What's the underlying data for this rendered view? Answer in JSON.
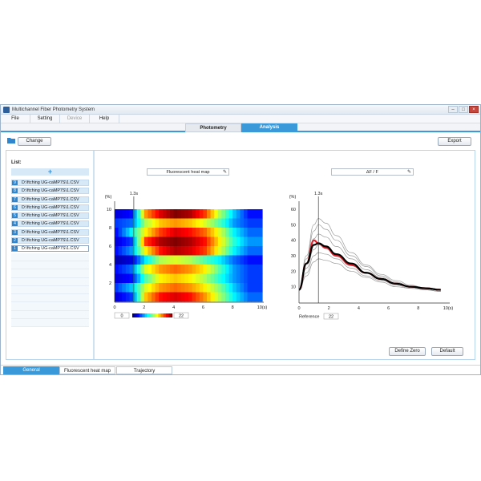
{
  "window": {
    "title": "Multichannel Fiber Photometry System"
  },
  "menu": [
    {
      "label": "File",
      "disabled": false
    },
    {
      "label": "Setting",
      "disabled": false
    },
    {
      "label": "Device",
      "disabled": true
    },
    {
      "label": "Help",
      "disabled": false
    }
  ],
  "mode_tabs": {
    "photometry": "Photometry",
    "analysis": "Analysis",
    "active": "Analysis"
  },
  "toolbar": {
    "change_label": "Change",
    "export_label": "Export"
  },
  "sidebar": {
    "list_label": "List:",
    "add_symbol": "+",
    "items": [
      {
        "num": "9",
        "file": "D:\\ftching UG-caMP7S\\1.CSV"
      },
      {
        "num": "8",
        "file": "D:\\ftching UG-caMP7S\\1.CSV"
      },
      {
        "num": "7",
        "file": "D:\\ftching UG-caMP7S\\1.CSV"
      },
      {
        "num": "6",
        "file": "D:\\ftching UG-caMP7S\\1.CSV"
      },
      {
        "num": "5",
        "file": "D:\\ftching UG-caMP7S\\1.CSV"
      },
      {
        "num": "4",
        "file": "D:\\ftching UG-caMP7S\\1.CSV"
      },
      {
        "num": "3",
        "file": "D:\\ftching UG-caMP7S\\1.CSV"
      },
      {
        "num": "2",
        "file": "D:\\ftching UG-caMP7S\\1.CSV"
      },
      {
        "num": "1",
        "file": "D:\\ftching UG-caMP7S\\1.CSV"
      }
    ]
  },
  "heatmap_panel": {
    "title_button": "Fluorescent heat map",
    "colorbar_min": "0",
    "colorbar_max": "22"
  },
  "curve_panel": {
    "title_button": "∆F / F",
    "reference_label": "Reference",
    "reference_value": "22"
  },
  "buttons": {
    "define_zero": "Define Zero",
    "default": "Default"
  },
  "bottom_tabs": {
    "general": "General",
    "heatmap": "Fluorescent heat map",
    "trajectory": "Trajectory"
  },
  "colors": {
    "accent": "#3a9ad9",
    "mean_curve": "#e0202a",
    "overall_curve": "#000000",
    "trials": "#9a9a9a"
  },
  "chart_data": [
    {
      "type": "heatmap",
      "x_unit": "(s)",
      "y_unit": "(%)",
      "xlim": [
        0,
        10
      ],
      "ylim": [
        0,
        10
      ],
      "x_ticks": [
        "0",
        "2",
        "4",
        "6",
        "8",
        "10(s)"
      ],
      "y_ticks": [
        "2",
        "4",
        "6",
        "8",
        "10"
      ],
      "marker_label": "1.3s",
      "marker_x": 1.3,
      "color_range": [
        0,
        22
      ],
      "rows": [
        [
          2,
          3,
          16,
          20,
          22,
          21,
          18,
          12,
          7,
          3
        ],
        [
          4,
          5,
          12,
          15,
          16,
          15,
          13,
          10,
          6,
          4
        ],
        [
          3,
          8,
          14,
          18,
          20,
          19,
          17,
          13,
          8,
          5
        ],
        [
          2,
          4,
          18,
          21,
          22,
          21,
          19,
          14,
          9,
          6
        ],
        [
          3,
          6,
          14,
          19,
          21,
          20,
          18,
          13,
          8,
          5
        ],
        [
          1,
          2,
          8,
          12,
          13,
          12,
          10,
          8,
          5,
          3
        ],
        [
          3,
          5,
          13,
          16,
          17,
          16,
          14,
          10,
          6,
          4
        ],
        [
          2,
          3,
          10,
          14,
          15,
          14,
          12,
          9,
          6,
          4
        ],
        [
          4,
          7,
          13,
          16,
          17,
          16,
          14,
          11,
          7,
          4
        ],
        [
          2,
          4,
          15,
          19,
          20,
          19,
          16,
          12,
          8,
          5
        ]
      ]
    },
    {
      "type": "line",
      "y_unit": "(%)",
      "xlim": [
        0,
        10
      ],
      "ylim": [
        0,
        60
      ],
      "x_ticks": [
        "0",
        "2",
        "4",
        "6",
        "8",
        "10(s)"
      ],
      "y_ticks": [
        "10",
        "20",
        "30",
        "40",
        "50",
        "60"
      ],
      "marker_label": "1.3s",
      "marker_x": 1.3,
      "x": [
        0,
        0.5,
        1.0,
        1.3,
        1.8,
        2.5,
        3.5,
        4.5,
        5.5,
        6.5,
        7.5,
        8.5,
        9.5
      ],
      "series": [
        {
          "style": "trial",
          "values": [
            8,
            30,
            50,
            54,
            51,
            43,
            32,
            24,
            18,
            14,
            11,
            9,
            8
          ]
        },
        {
          "style": "trial",
          "values": [
            8,
            28,
            46,
            50,
            47,
            40,
            30,
            23,
            17,
            13,
            10,
            9,
            8
          ]
        },
        {
          "style": "trial",
          "values": [
            8,
            25,
            41,
            44,
            42,
            36,
            28,
            21,
            16,
            12,
            10,
            8,
            7
          ]
        },
        {
          "style": "trial",
          "values": [
            8,
            22,
            34,
            37,
            36,
            31,
            25,
            19,
            15,
            12,
            10,
            8,
            7
          ]
        },
        {
          "style": "trial",
          "values": [
            8,
            19,
            30,
            32,
            31,
            28,
            22,
            17,
            14,
            11,
            9,
            8,
            7
          ]
        },
        {
          "style": "trial",
          "values": [
            8,
            17,
            26,
            28,
            27,
            25,
            20,
            16,
            13,
            10,
            9,
            8,
            7
          ]
        },
        {
          "style": "mean",
          "values": [
            8,
            25,
            40,
            38,
            35,
            30,
            24,
            19,
            15,
            12,
            10,
            9,
            8
          ]
        },
        {
          "style": "overall",
          "values": [
            8,
            25,
            37,
            38,
            36,
            31,
            25,
            19,
            15,
            12,
            10,
            9,
            8
          ]
        }
      ]
    }
  ]
}
